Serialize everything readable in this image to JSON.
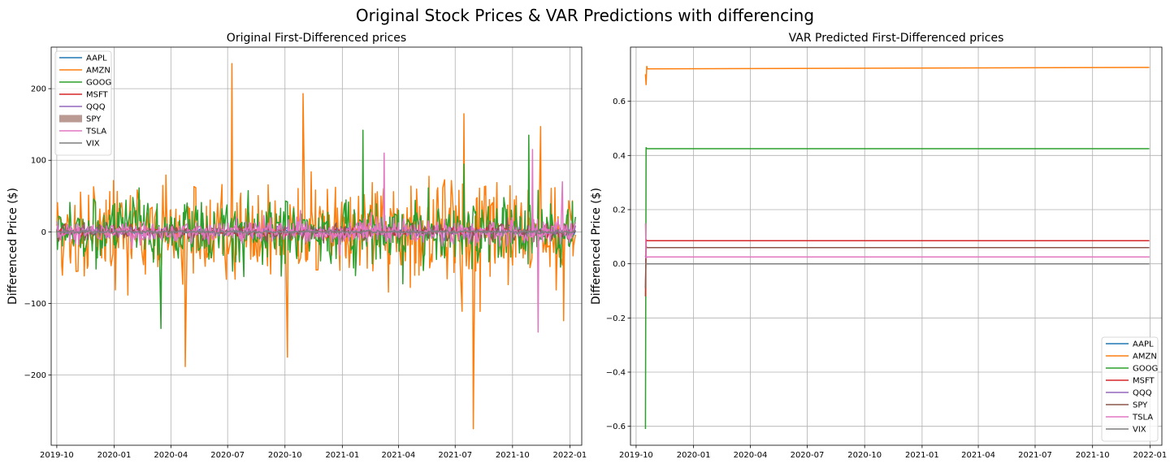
{
  "figure": {
    "suptitle": "Original Stock Prices & VAR Predictions with differencing"
  },
  "chart_data": [
    {
      "type": "line",
      "title": "Original First-Differenced prices",
      "xlabel": "",
      "ylabel": "Differenced Price ($)",
      "x_range": [
        "2019-10-01",
        "2022-01-10"
      ],
      "xlim": [
        "2019-09-22",
        "2022-01-20"
      ],
      "ylim": [
        -298,
        258
      ],
      "yticks": [
        -200,
        -100,
        0,
        100,
        200
      ],
      "yticklabels": [
        "−200",
        "−100",
        "0",
        "100",
        "200"
      ],
      "xticks": [
        "2019-10",
        "2020-01",
        "2020-04",
        "2020-07",
        "2020-10",
        "2021-01",
        "2021-04",
        "2021-07",
        "2021-10",
        "2022-01"
      ],
      "grid": true,
      "legend_position": "upper left",
      "series": [
        {
          "name": "AAPL",
          "color": "#1f77b4",
          "amplitude": 6,
          "notable_points": []
        },
        {
          "name": "AMZN",
          "color": "#ff7f0e",
          "amplitude": 90,
          "notable_points": [
            {
              "x": "2020-07-08",
              "y": 235
            },
            {
              "x": "2020-10-30",
              "y": 193
            },
            {
              "x": "2020-04-24",
              "y": -188
            },
            {
              "x": "2021-07-30",
              "y": -275
            },
            {
              "x": "2021-07-15",
              "y": 165
            },
            {
              "x": "2020-10-05",
              "y": -175
            },
            {
              "x": "2021-11-15",
              "y": 147
            }
          ]
        },
        {
          "name": "GOOG",
          "color": "#2ca02c",
          "amplitude": 55,
          "notable_points": [
            {
              "x": "2021-02-03",
              "y": 142
            },
            {
              "x": "2021-10-27",
              "y": 135
            },
            {
              "x": "2020-03-16",
              "y": -135
            }
          ]
        },
        {
          "name": "MSFT",
          "color": "#d62728",
          "amplitude": 6,
          "notable_points": []
        },
        {
          "name": "QQQ",
          "color": "#9467bd",
          "amplitude": 10,
          "notable_points": []
        },
        {
          "name": "SPY",
          "color": "#8c564b",
          "amplitude": 14,
          "notable_points": []
        },
        {
          "name": "TSLA",
          "color": "#e377c2",
          "amplitude": 22,
          "notable_points": [
            {
              "x": "2021-11-02",
              "y": 115
            },
            {
              "x": "2021-11-11",
              "y": -140
            },
            {
              "x": "2021-03-09",
              "y": 110
            },
            {
              "x": "2021-12-20",
              "y": 70
            }
          ]
        },
        {
          "name": "VIX",
          "color": "#7f7f7f",
          "amplitude": 3,
          "notable_points": []
        }
      ]
    },
    {
      "type": "line",
      "title": "VAR Predicted First-Differenced prices",
      "xlabel": "",
      "ylabel": "Differenced Price ($)",
      "x_range": [
        "2019-10-16",
        "2021-12-31"
      ],
      "xlim": [
        "2019-09-22",
        "2022-01-20"
      ],
      "ylim": [
        -0.67,
        0.8
      ],
      "yticks": [
        -0.6,
        -0.4,
        -0.2,
        0.0,
        0.2,
        0.4,
        0.6
      ],
      "yticklabels": [
        "−0.6",
        "−0.4",
        "−0.2",
        "0.0",
        "0.2",
        "0.4",
        "0.6"
      ],
      "xticks": [
        "2019-10",
        "2020-01",
        "2020-04",
        "2020-07",
        "2020-10",
        "2021-01",
        "2021-04",
        "2021-07",
        "2021-10",
        "2022-01"
      ],
      "grid": true,
      "legend_position": "lower right",
      "series": [
        {
          "name": "AAPL",
          "color": "#1f77b4",
          "initial": [
            0.03,
            0.02,
            0.025
          ],
          "steady": 0.025
        },
        {
          "name": "AMZN",
          "color": "#ff7f0e",
          "initial": [
            0.7,
            0.66,
            0.73,
            0.72
          ],
          "steady": 0.725
        },
        {
          "name": "GOOG",
          "color": "#2ca02c",
          "initial": [
            -0.61,
            0.43,
            0.425
          ],
          "steady": 0.425
        },
        {
          "name": "MSFT",
          "color": "#d62728",
          "initial": [
            -0.12,
            0.09,
            0.085
          ],
          "steady": 0.085
        },
        {
          "name": "QQQ",
          "color": "#9467bd",
          "initial": [
            0.03,
            0.02,
            0.025
          ],
          "steady": 0.025
        },
        {
          "name": "SPY",
          "color": "#8c564b",
          "initial": [
            -0.09,
            0.065,
            0.06
          ],
          "steady": 0.06
        },
        {
          "name": "TSLA",
          "color": "#e377c2",
          "initial": [
            0.15,
            0.02,
            0.025
          ],
          "steady": 0.025
        },
        {
          "name": "VIX",
          "color": "#7f7f7f",
          "initial": [
            0.0,
            0.0
          ],
          "steady": 0.0
        }
      ]
    }
  ]
}
